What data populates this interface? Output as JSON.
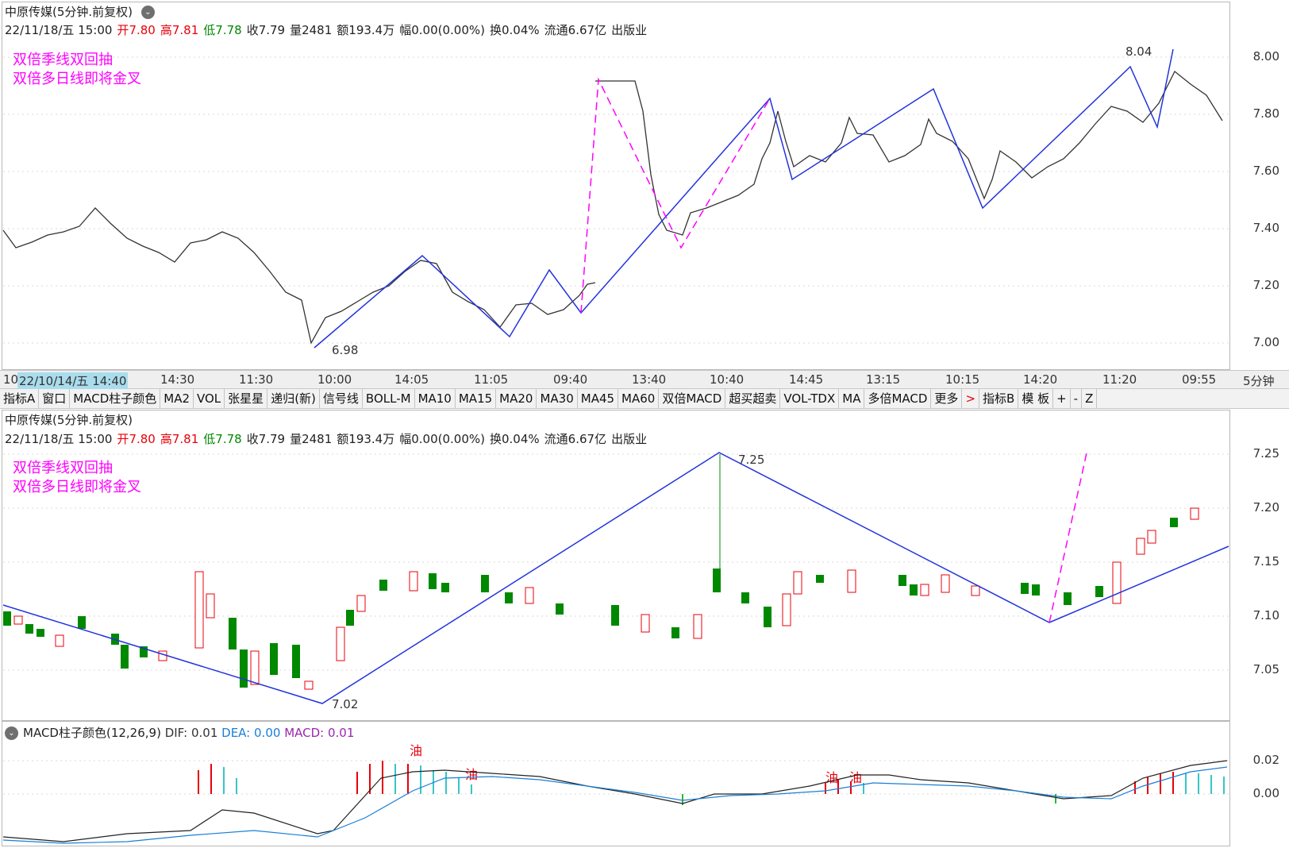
{
  "top_panel": {
    "title": "中原传媒(5分钟.前复权)",
    "info": {
      "date": "22/11/18/五 15:00",
      "open_label": "开",
      "open": "7.80",
      "high_label": "高",
      "high": "7.81",
      "low_label": "低",
      "low": "7.78",
      "close": "收7.79",
      "volume": "量2481",
      "amount": "额193.4万",
      "change": "幅0.00(0.00%)",
      "turnover": "换0.04%",
      "float_cap": "流通6.67亿",
      "sector": "出版业"
    },
    "notes": [
      "双倍季线双回抽",
      "双倍多日线即将金叉"
    ],
    "y_ticks": [
      "8.00",
      "7.80",
      "7.60",
      "7.40",
      "7.20",
      "7.00"
    ],
    "annotations": {
      "low": "6.98",
      "high": "8.04"
    }
  },
  "time_axis": {
    "labels": [
      "10",
      "22/10/14/五 14:40",
      "14:30",
      "11:30",
      "10:00",
      "14:05",
      "11:05",
      "09:40",
      "13:40",
      "10:40",
      "14:45",
      "13:15",
      "10:15",
      "14:20",
      "11:20",
      "09:55"
    ],
    "period": "5分钟"
  },
  "toolbar": {
    "items": [
      "指标A",
      "窗口",
      "MACD柱子颜色",
      "MA2",
      "VOL",
      "张星星",
      "递归(新)",
      "信号线",
      "BOLL-M",
      "MA10",
      "MA15",
      "MA20",
      "MA30",
      "MA45",
      "MA60",
      "双倍MACD",
      "超买超卖",
      "VOL-TDX",
      "MA",
      "多倍MACD",
      "更多",
      ">",
      "指标B",
      "模 板",
      "+",
      "-",
      "Z"
    ]
  },
  "mid_panel": {
    "title": "中原传媒(5分钟.前复权)",
    "notes": [
      "双倍季线双回抽",
      "双倍多日线即将金叉"
    ],
    "y_ticks": [
      "7.25",
      "7.20",
      "7.15",
      "7.10",
      "7.05"
    ],
    "annotations": {
      "low": "7.02",
      "high": "7.25"
    }
  },
  "macd_panel": {
    "name": "MACD柱子颜色(12,26,9)",
    "dif": "DIF: 0.01",
    "dea": "DEA: 0.00",
    "macd": "MACD: 0.01",
    "y_ticks": [
      "0.02",
      "0.00"
    ],
    "signal_mark": "油"
  },
  "colors": {
    "up": "#e8000b",
    "down": "#008800",
    "zigzag": "#2233dd",
    "dashed": "#ff00ff",
    "dea": "#1a7fd6"
  }
}
